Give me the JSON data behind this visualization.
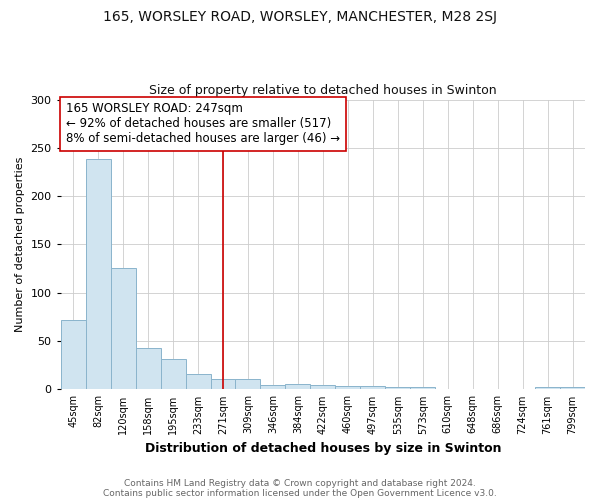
{
  "title1": "165, WORSLEY ROAD, WORSLEY, MANCHESTER, M28 2SJ",
  "title2": "Size of property relative to detached houses in Swinton",
  "xlabel": "Distribution of detached houses by size in Swinton",
  "ylabel": "Number of detached properties",
  "categories": [
    "45sqm",
    "82sqm",
    "120sqm",
    "158sqm",
    "195sqm",
    "233sqm",
    "271sqm",
    "309sqm",
    "346sqm",
    "384sqm",
    "422sqm",
    "460sqm",
    "497sqm",
    "535sqm",
    "573sqm",
    "610sqm",
    "648sqm",
    "686sqm",
    "724sqm",
    "761sqm",
    "799sqm"
  ],
  "values": [
    72,
    238,
    126,
    43,
    32,
    16,
    11,
    11,
    5,
    6,
    5,
    4,
    4,
    3,
    2,
    0,
    0,
    0,
    0,
    2,
    2
  ],
  "bar_color": "#d0e4f0",
  "bar_edge_color": "#8ab4cc",
  "vline_x": 6.0,
  "vline_color": "#cc0000",
  "annotation_text": "165 WORSLEY ROAD: 247sqm\n← 92% of detached houses are smaller (517)\n8% of semi-detached houses are larger (46) →",
  "annotation_box_color": "white",
  "annotation_box_edge": "#cc0000",
  "ylim": [
    0,
    300
  ],
  "yticks": [
    0,
    50,
    100,
    150,
    200,
    250,
    300
  ],
  "footer1": "Contains HM Land Registry data © Crown copyright and database right 2024.",
  "footer2": "Contains public sector information licensed under the Open Government Licence v3.0.",
  "background_color": "#ffffff",
  "title1_fontsize": 10,
  "title2_fontsize": 9,
  "annotation_fontsize": 8.5,
  "xlabel_fontsize": 9,
  "ylabel_fontsize": 8
}
